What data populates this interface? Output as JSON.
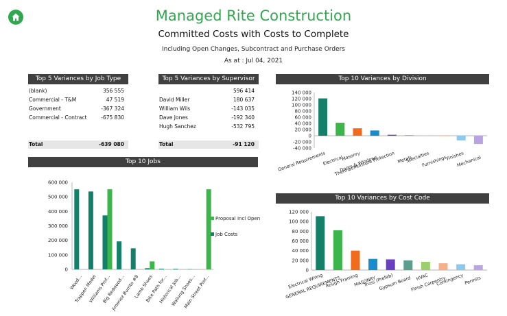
{
  "header": {
    "home_icon": "home-icon",
    "title": "Managed Rite Construction",
    "subtitle": "Committed Costs with Costs to Complete",
    "note": "Including Open Changes, Subcontract and Purchase Orders",
    "as_at": "As at : Jul 04, 2021"
  },
  "colors": {
    "brand": "#2fa84f",
    "header_bar": "#404040",
    "proposal": "#3cb54a",
    "job_costs": "#15806a"
  },
  "job_type_table": {
    "title": "Top 5 Variances by Job Type",
    "rows": [
      {
        "label": "(blank)",
        "value": "356 555"
      },
      {
        "label": "Commercial - T&M",
        "value": "47 519"
      },
      {
        "label": "Government",
        "value": "-367 324"
      },
      {
        "label": "Commercial - Contract",
        "value": "-675 830"
      }
    ],
    "total_label": "Total",
    "total_value": "-639 080"
  },
  "supervisor_table": {
    "title": "Top 5 Variances by Supervisor",
    "rows": [
      {
        "label": "",
        "value": "596 414"
      },
      {
        "label": "David Miller",
        "value": "180 637"
      },
      {
        "label": "William Wils",
        "value": "-143 035"
      },
      {
        "label": "Dave Jones",
        "value": "-192 340"
      },
      {
        "label": "Hugh Sanchez",
        "value": "-532 795"
      }
    ],
    "total_label": "Total",
    "total_value": "-91 120"
  },
  "chart_data": [
    {
      "type": "bar",
      "title": "Top 10 Variances by Division",
      "categories": [
        "General Requirements",
        "Electrical",
        "Masonry",
        "Doors & Windows",
        "Thermal/Moisture Protection",
        "Metals",
        "Specialties",
        "Furnishings",
        "Finishes",
        "Mechanical"
      ],
      "values": [
        121000,
        42000,
        24000,
        17000,
        3000,
        1500,
        1000,
        0,
        -15000,
        -27000
      ],
      "colors": [
        "#15806a",
        "#3cb54a",
        "#f26b1d",
        "#1a8ccc",
        "#6a3fc2",
        "#5c9e8e",
        "#9ccf6b",
        "#f5b08a",
        "#8ec9ec",
        "#b9a4e3"
      ],
      "yticks": [
        "140 000",
        "120 000",
        "100 000",
        "80 000",
        "60 000",
        "40 000",
        "20 000",
        "0",
        "-20 000",
        "-40 000"
      ],
      "ylim": [
        -40000,
        140000
      ],
      "grid": false
    },
    {
      "type": "bar",
      "title": "Top 10 Variances by Cost Code",
      "categories": [
        "Electrical Wiring",
        "GENERAL REQUIREMENTS",
        "Rough Framing",
        "MASONRY",
        "Truss (Prefab)",
        "Gypsum Board",
        "HVAC",
        "Finish Carpentry",
        "Contingency",
        "Permits"
      ],
      "values": [
        111000,
        82000,
        40000,
        23000,
        22000,
        20000,
        17000,
        14000,
        12000,
        10000
      ],
      "colors": [
        "#15806a",
        "#3cb54a",
        "#f26b1d",
        "#1a8ccc",
        "#6a3fc2",
        "#5c9e8e",
        "#9ccf6b",
        "#f5b08a",
        "#8ec9ec",
        "#b9a4e3"
      ],
      "yticks": [
        "120 000",
        "100 000",
        "80 000",
        "60 000",
        "40 000",
        "20 000",
        "0"
      ],
      "ylim": [
        0,
        120000
      ],
      "grid": false
    },
    {
      "type": "bar",
      "title": "Top 10 Jobs",
      "categories": [
        "Wood...",
        "Trappen Model",
        "Williams Prof...",
        "Big Redwood...",
        "Jimenez Burrito #8",
        "Lamb Shoes",
        "Bike Path for...",
        "Historical Job...",
        "Walking Shoes...",
        "Main Street Prof..."
      ],
      "series": [
        {
          "name": "Proposal Incl Open",
          "color": "#3cb54a",
          "values": [
            0,
            0,
            552000,
            0,
            0,
            55000,
            0,
            0,
            0,
            552000
          ]
        },
        {
          "name": "Job Costs",
          "color": "#15806a",
          "values": [
            552000,
            537000,
            372000,
            193000,
            145000,
            8000,
            5000,
            4000,
            2000,
            0
          ]
        }
      ],
      "yticks": [
        "600 000",
        "500 000",
        "400 000",
        "300 000",
        "200 000",
        "100 000",
        "0"
      ],
      "ylim": [
        0,
        600000
      ],
      "legend": "right",
      "grid": false
    }
  ]
}
